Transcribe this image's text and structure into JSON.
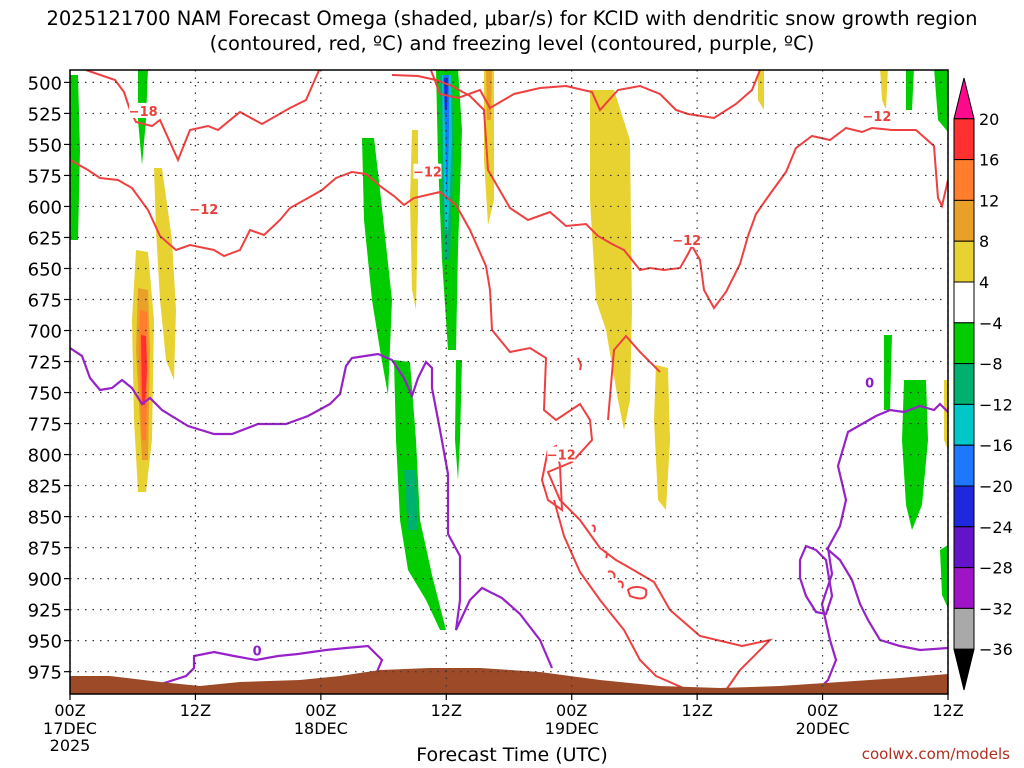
{
  "chart_data": {
    "type": "time-height cross section",
    "title": "2025121700 NAM Forecast Omega (shaded, μbar/s) for KCID with dendritic snow growth region (contoured, red, ºC) and freezing level (contoured, purple, ºC)",
    "xlabel": "Forecast Time (UTC)",
    "y_ticks": [
      "500",
      "525",
      "550",
      "575",
      "600",
      "625",
      "650",
      "675",
      "700",
      "725",
      "750",
      "775",
      "800",
      "825",
      "850",
      "875",
      "900",
      "925",
      "950",
      "975"
    ],
    "x_ticks": [
      {
        "hour": 0,
        "label": "00Z",
        "date": "17DEC",
        "year": "2025"
      },
      {
        "hour": 12,
        "label": "12Z",
        "date": "",
        "year": ""
      },
      {
        "hour": 24,
        "label": "00Z",
        "date": "18DEC",
        "year": ""
      },
      {
        "hour": 36,
        "label": "12Z",
        "date": "",
        "year": ""
      },
      {
        "hour": 48,
        "label": "00Z",
        "date": "19DEC",
        "year": ""
      },
      {
        "hour": 60,
        "label": "12Z",
        "date": "",
        "year": ""
      },
      {
        "hour": 72,
        "label": "00Z",
        "date": "20DEC",
        "year": ""
      },
      {
        "hour": 84,
        "label": "12Z",
        "date": "",
        "year": ""
      }
    ],
    "x_range_hours": [
      0,
      84
    ],
    "y_range_mb": [
      490,
      993
    ],
    "colorbar": {
      "labels": [
        "20",
        "16",
        "12",
        "8",
        "4",
        "−4",
        "−8",
        "−12",
        "−16",
        "−20",
        "−24",
        "−28",
        "−32",
        "−36"
      ],
      "colors": [
        "#ff0a8c",
        "#ff3030",
        "#ff7d2d",
        "#e8a028",
        "#e8d232",
        "#ffffff",
        "#00cc00",
        "#00b06e",
        "#00c8c8",
        "#1e78ff",
        "#1e28dc",
        "#6414c8",
        "#a014c8",
        "#a9a9a9",
        "#000000"
      ]
    },
    "contour_labels": [
      {
        "text": "−18",
        "hour": 7.0,
        "mb": 523,
        "color": "#e8413c"
      },
      {
        "text": "−12",
        "hour": 12.8,
        "mb": 602,
        "color": "#e8413c"
      },
      {
        "text": "−12",
        "hour": 34.2,
        "mb": 572,
        "color": "#e8413c"
      },
      {
        "text": "−12",
        "hour": 59.0,
        "mb": 627,
        "color": "#e8413c"
      },
      {
        "text": "−12",
        "hour": 77.2,
        "mb": 527,
        "color": "#e8413c"
      },
      {
        "text": "−12",
        "hour": 47.0,
        "mb": 800,
        "color": "#e8413c"
      },
      {
        "text": "0",
        "hour": 17.9,
        "mb": 958,
        "color": "#8c1ec8"
      },
      {
        "text": "0",
        "hour": 76.5,
        "mb": 742,
        "color": "#8c1ec8"
      }
    ],
    "grid": true
  },
  "credit": "coolwx.com/models"
}
